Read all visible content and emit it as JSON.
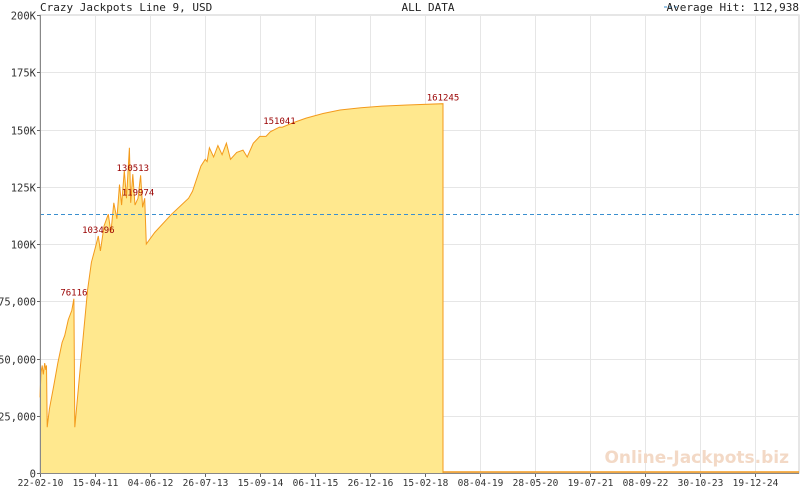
{
  "header": {
    "left": "Crazy Jackpots Line 9, USD",
    "center": "ALL DATA",
    "right": "Average Hit: 112,938"
  },
  "watermark": "Online-Jackpots.biz",
  "colors": {
    "fill": "#ffe88e",
    "line": "#f39a1c",
    "average": "#3a8fcf",
    "grid": "#e6e6e6",
    "label": "#990000"
  },
  "chart_data": {
    "type": "area",
    "title": "Crazy Jackpots Line 9, USD",
    "subtitle": "ALL DATA",
    "y_tick_labels": [
      "0",
      "25,000",
      "50,000",
      "75,000",
      "100K",
      "125K",
      "150K",
      "175K",
      "200K"
    ],
    "y_tick_values": [
      0,
      25000,
      50000,
      75000,
      100000,
      125000,
      150000,
      175000,
      200000
    ],
    "ylim": [
      0,
      200000
    ],
    "x_tick_labels": [
      "22-02-10",
      "15-04-11",
      "04-06-12",
      "26-07-13",
      "15-09-14",
      "06-11-15",
      "26-12-16",
      "15-02-18",
      "08-04-19",
      "28-05-20",
      "19-07-21",
      "08-09-22",
      "30-10-23",
      "19-12-24"
    ],
    "x_range": [
      "2010-02-22",
      "2025-03-05"
    ],
    "average": {
      "label": "Average Hit",
      "value": 112938
    },
    "series": [
      {
        "points": [
          [
            "2010-02-22",
            33000
          ],
          [
            "2010-03-01",
            44000
          ],
          [
            "2010-03-10",
            47000
          ],
          [
            "2010-03-18",
            43000
          ],
          [
            "2010-03-28",
            48000
          ],
          [
            "2010-04-05",
            45000
          ],
          [
            "2010-04-10",
            47000
          ],
          [
            "2010-04-15",
            20000
          ],
          [
            "2010-05-01",
            28000
          ],
          [
            "2010-06-01",
            38000
          ],
          [
            "2010-07-01",
            48000
          ],
          [
            "2010-08-01",
            57000
          ],
          [
            "2010-08-20",
            60000
          ],
          [
            "2010-09-15",
            67000
          ],
          [
            "2010-10-10",
            71000
          ],
          [
            "2010-10-25",
            76116
          ],
          [
            "2010-11-01",
            20000
          ],
          [
            "2010-12-01",
            40000
          ],
          [
            "2011-01-01",
            60000
          ],
          [
            "2011-02-01",
            80000
          ],
          [
            "2011-03-01",
            92000
          ],
          [
            "2011-04-01",
            99000
          ],
          [
            "2011-04-20",
            103496
          ],
          [
            "2011-05-05",
            97000
          ],
          [
            "2011-06-01",
            108000
          ],
          [
            "2011-07-01",
            113000
          ],
          [
            "2011-07-20",
            105000
          ],
          [
            "2011-08-10",
            118000
          ],
          [
            "2011-09-01",
            111000
          ],
          [
            "2011-09-20",
            126000
          ],
          [
            "2011-10-05",
            117000
          ],
          [
            "2011-10-25",
            132000
          ],
          [
            "2011-11-10",
            120000
          ],
          [
            "2011-12-01",
            142000
          ],
          [
            "2011-12-10",
            118000
          ],
          [
            "2011-12-25",
            130513
          ],
          [
            "2012-01-10",
            117000
          ],
          [
            "2012-02-01",
            119974
          ],
          [
            "2012-02-20",
            130000
          ],
          [
            "2012-03-05",
            116000
          ],
          [
            "2012-03-20",
            120000
          ],
          [
            "2012-04-01",
            100000
          ],
          [
            "2012-06-01",
            105000
          ],
          [
            "2012-10-01",
            113000
          ],
          [
            "2013-02-01",
            120000
          ],
          [
            "2013-03-01",
            123000
          ],
          [
            "2013-05-01",
            134000
          ],
          [
            "2013-06-01",
            137000
          ],
          [
            "2013-06-15",
            136000
          ],
          [
            "2013-07-01",
            142000
          ],
          [
            "2013-08-01",
            138000
          ],
          [
            "2013-09-01",
            143000
          ],
          [
            "2013-10-01",
            139000
          ],
          [
            "2013-11-01",
            144000
          ],
          [
            "2013-12-01",
            137000
          ],
          [
            "2014-01-15",
            140000
          ],
          [
            "2014-03-01",
            141000
          ],
          [
            "2014-04-01",
            138000
          ],
          [
            "2014-05-15",
            144000
          ],
          [
            "2014-07-01",
            147000
          ],
          [
            "2014-08-15",
            147000
          ],
          [
            "2014-09-15",
            149000
          ],
          [
            "2014-11-20",
            151041
          ],
          [
            "2014-12-10",
            151000
          ],
          [
            "2015-03-01",
            153000
          ],
          [
            "2015-06-01",
            155000
          ],
          [
            "2015-10-01",
            157000
          ],
          [
            "2016-02-01",
            158500
          ],
          [
            "2016-07-01",
            159500
          ],
          [
            "2016-12-01",
            160200
          ],
          [
            "2017-06-01",
            160700
          ],
          [
            "2018-02-15",
            161245
          ]
        ]
      }
    ],
    "point_labels": [
      {
        "text": "76116",
        "x": "2010-10-25",
        "y": 76116
      },
      {
        "text": "103496",
        "x": "2011-04-20",
        "y": 103496
      },
      {
        "text": "130513",
        "x": "2011-12-25",
        "y": 130513
      },
      {
        "text": "119974",
        "x": "2012-02-01",
        "y": 119974
      },
      {
        "text": "151041",
        "x": "2014-11-20",
        "y": 151041
      },
      {
        "text": "161245",
        "x": "2018-02-15",
        "y": 161245
      }
    ],
    "grid": true
  }
}
